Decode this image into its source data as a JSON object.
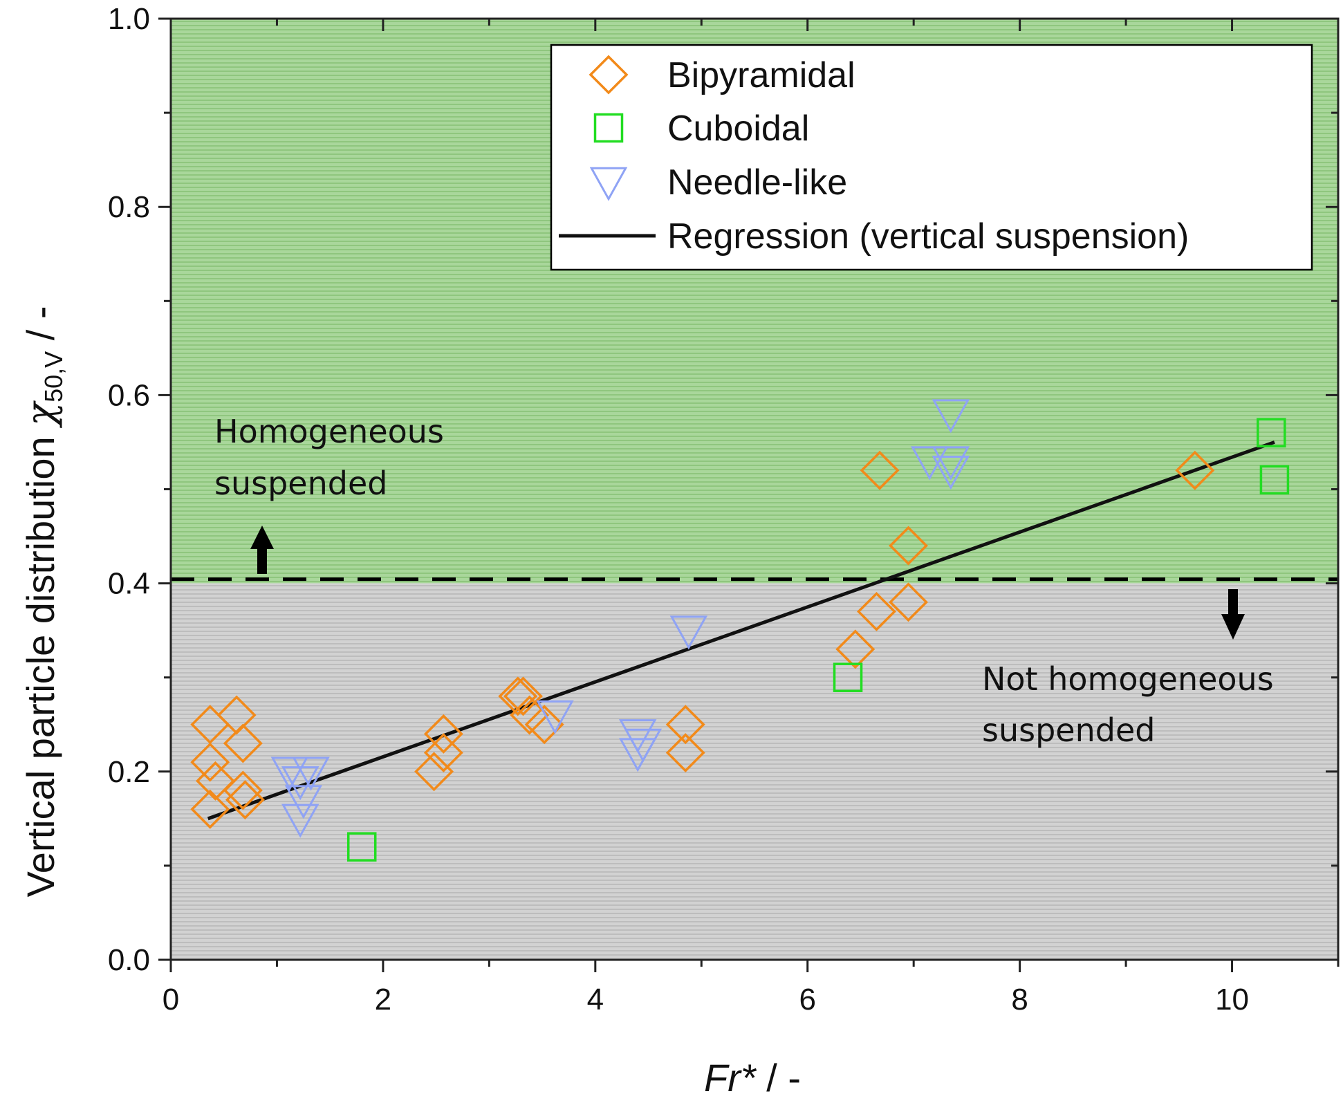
{
  "chart_data": {
    "type": "scatter",
    "xlabel": "Fr* / -",
    "xlabel_main": "Fr*",
    "xlabel_unit": " / -",
    "ylabel": "Vertical particle distribution χ50,V / -",
    "ylabel_main": "Vertical particle distribution ",
    "ylabel_symbol": "χ",
    "ylabel_sub": "50,V",
    "ylabel_unit": " / -",
    "xlim": [
      0,
      11
    ],
    "ylim": [
      0,
      1.0
    ],
    "x_ticks": [
      0,
      2,
      4,
      6,
      8,
      10
    ],
    "x_tick_labels": [
      "0",
      "2",
      "4",
      "6",
      "8",
      "10"
    ],
    "y_ticks": [
      0.0,
      0.2,
      0.4,
      0.6,
      0.8,
      1.0
    ],
    "y_tick_labels": [
      "0.0",
      "0.2",
      "0.4",
      "0.6",
      "0.8",
      "1.0"
    ],
    "threshold": 0.4,
    "regions": {
      "upper": {
        "label_line1": "Homogeneous",
        "label_line2": "suspended",
        "color": "#9fd08f"
      },
      "lower": {
        "label_line1": "Not homogeneous",
        "label_line2": "suspended",
        "color": "#c9c9c9"
      }
    },
    "legend_position": "top-right",
    "series": [
      {
        "name": "Bipyramidal",
        "marker": "diamond",
        "color": "#f28a1a",
        "points": [
          [
            0.37,
            0.25
          ],
          [
            0.37,
            0.16
          ],
          [
            0.37,
            0.21
          ],
          [
            0.42,
            0.19
          ],
          [
            0.62,
            0.26
          ],
          [
            0.68,
            0.23
          ],
          [
            0.68,
            0.18
          ],
          [
            0.7,
            0.17
          ],
          [
            2.48,
            0.2
          ],
          [
            2.57,
            0.24
          ],
          [
            2.57,
            0.22
          ],
          [
            3.27,
            0.28
          ],
          [
            3.32,
            0.28
          ],
          [
            3.38,
            0.26
          ],
          [
            3.52,
            0.25
          ],
          [
            4.85,
            0.25
          ],
          [
            4.85,
            0.22
          ],
          [
            6.45,
            0.33
          ],
          [
            6.65,
            0.37
          ],
          [
            6.68,
            0.52
          ],
          [
            6.95,
            0.44
          ],
          [
            6.95,
            0.38
          ],
          [
            9.65,
            0.52
          ]
        ]
      },
      {
        "name": "Cuboidal",
        "marker": "square",
        "color": "#22dd22",
        "points": [
          [
            1.8,
            0.12
          ],
          [
            6.38,
            0.3
          ],
          [
            10.37,
            0.56
          ],
          [
            10.4,
            0.51
          ]
        ]
      },
      {
        "name": "Needle-like",
        "marker": "triangle-down",
        "color": "#8fa3f5",
        "points": [
          [
            1.12,
            0.2
          ],
          [
            1.22,
            0.19
          ],
          [
            1.32,
            0.2
          ],
          [
            1.25,
            0.17
          ],
          [
            1.22,
            0.15
          ],
          [
            3.62,
            0.26
          ],
          [
            4.4,
            0.24
          ],
          [
            4.45,
            0.23
          ],
          [
            4.4,
            0.22
          ],
          [
            4.88,
            0.35
          ],
          [
            7.15,
            0.53
          ],
          [
            7.35,
            0.53
          ],
          [
            7.35,
            0.52
          ],
          [
            7.35,
            0.58
          ]
        ]
      }
    ],
    "regression": {
      "name": "Regression (vertical suspension)",
      "color": "#111111",
      "points": [
        [
          0.35,
          0.15
        ],
        [
          10.4,
          0.55
        ]
      ]
    }
  }
}
